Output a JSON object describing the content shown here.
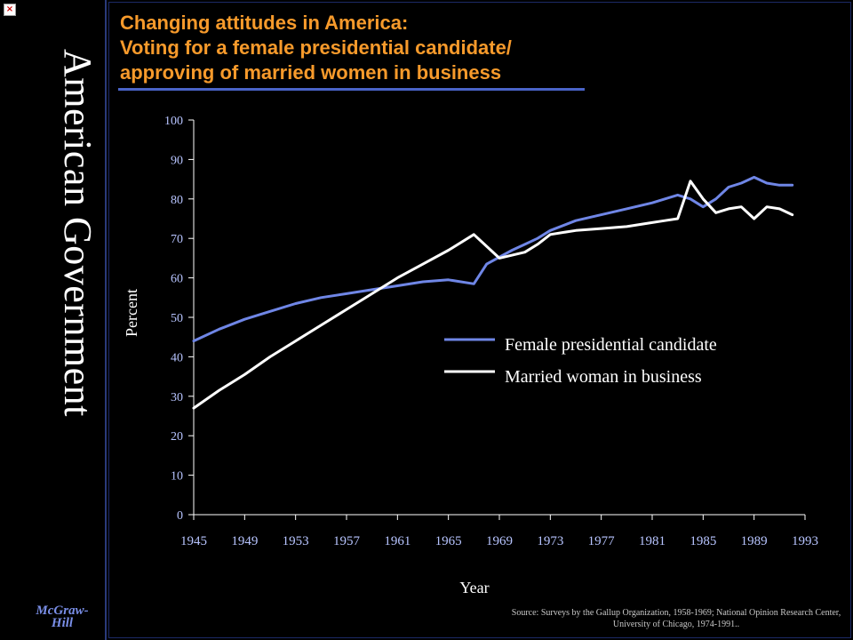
{
  "side_title": "American Government",
  "publisher": "McGraw-Hill",
  "broken_image_glyph": "×",
  "title_lines": [
    "Changing attitudes in America:",
    "Voting for a female presidential candidate/",
    "approving of married women in business"
  ],
  "source": "Source: Surveys by the Gallup Organization, 1958-1969; National Opinion Research Center, University of Chicago, 1974-1991..",
  "colors": {
    "accent": "#f79a2b",
    "series_blue": "#6f86e6",
    "series_white": "#ffffff",
    "tick": "#b7c4ff"
  },
  "chart_data": {
    "type": "line",
    "xlabel": "Year",
    "ylabel": "Percent",
    "ylim": [
      0,
      100
    ],
    "yticks": [
      0,
      10,
      20,
      30,
      40,
      50,
      60,
      70,
      80,
      90,
      100
    ],
    "xlim": [
      1945,
      1993
    ],
    "xticks": [
      1945,
      1949,
      1953,
      1957,
      1961,
      1965,
      1969,
      1973,
      1977,
      1981,
      1985,
      1989,
      1993
    ],
    "legend_position": "right-center",
    "grid": false,
    "series": [
      {
        "name": "Female presidential candidate",
        "color": "#6f86e6",
        "x": [
          1945,
          1947,
          1949,
          1951,
          1953,
          1955,
          1957,
          1959,
          1961,
          1963,
          1965,
          1967,
          1968,
          1970,
          1971,
          1972,
          1973,
          1975,
          1977,
          1979,
          1981,
          1982,
          1983,
          1984,
          1985,
          1986,
          1987,
          1988,
          1989,
          1990,
          1991,
          1992
        ],
        "values": [
          44,
          47,
          49.5,
          51.5,
          53.5,
          55,
          56,
          57,
          58,
          59,
          59.5,
          58.5,
          63.5,
          67,
          68.5,
          70,
          72,
          74.5,
          76,
          77.5,
          79,
          80,
          81,
          80,
          78,
          80,
          83,
          84,
          85.5,
          84,
          83.5,
          83.5
        ]
      },
      {
        "name": "Married woman in business",
        "color": "#ffffff",
        "x": [
          1945,
          1947,
          1949,
          1951,
          1953,
          1955,
          1957,
          1959,
          1961,
          1963,
          1965,
          1967,
          1969,
          1971,
          1972,
          1973,
          1974,
          1975,
          1977,
          1979,
          1981,
          1982,
          1983,
          1984,
          1985,
          1986,
          1987,
          1988,
          1989,
          1990,
          1991,
          1992
        ],
        "values": [
          27,
          31.5,
          35.5,
          40,
          44,
          48,
          52,
          56,
          60,
          63.5,
          67,
          71,
          65,
          66.5,
          68.5,
          71,
          71.5,
          72,
          72.5,
          73,
          74,
          74.5,
          75,
          84.5,
          80,
          76.5,
          77.5,
          78,
          75,
          78,
          77.5,
          76
        ]
      }
    ]
  }
}
